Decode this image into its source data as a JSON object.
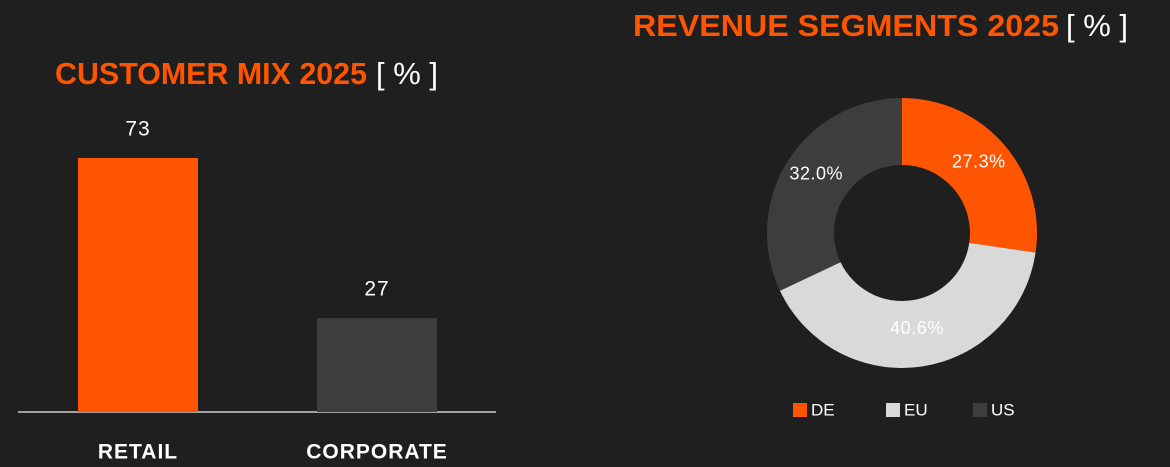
{
  "chart_data": [
    {
      "type": "bar",
      "title": "CUSTOMER MIX 2025",
      "unit": "[ % ]",
      "categories": [
        "RETAIL",
        "CORPORATE"
      ],
      "values": [
        73,
        27
      ],
      "colors": [
        "#ff5500",
        "#3d3d3d"
      ]
    },
    {
      "type": "pie",
      "title": "REVENUE SEGMENTS 2025",
      "unit": "[ % ]",
      "categories": [
        "DE",
        "EU",
        "US"
      ],
      "values": [
        27.3,
        40.6,
        32.0
      ],
      "value_labels": [
        "27.3%",
        "40.6%",
        "32.0%"
      ],
      "colors": [
        "#ff5500",
        "#d9d9d9",
        "#3d3d3d"
      ],
      "donut": true
    }
  ]
}
